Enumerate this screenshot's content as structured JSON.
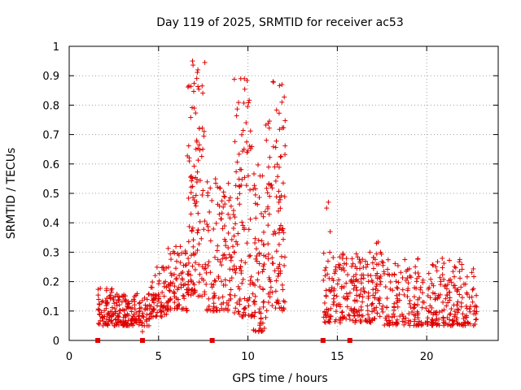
{
  "chart_data": {
    "type": "scatter",
    "title": "Day 119 of 2025, SRMTID for receiver ac53",
    "xlabel": "GPS time / hours",
    "ylabel": "SRMTID / TECUs",
    "xlim": [
      0,
      24
    ],
    "ylim": [
      0,
      1
    ],
    "xticks": [
      0,
      5,
      10,
      15,
      20
    ],
    "xtick_labels": [
      "0",
      "5",
      "10",
      "15",
      "20"
    ],
    "yticks": [
      0,
      0.1,
      0.2,
      0.3,
      0.4,
      0.5,
      0.6,
      0.7,
      0.8,
      0.9,
      1
    ],
    "ytick_labels": [
      "0",
      "0.1",
      "0.2",
      "0.3",
      "0.4",
      "0.5",
      "0.6",
      "0.7",
      "0.8",
      "0.9",
      "1"
    ],
    "grid": true,
    "series_color": "#e00000",
    "marker": "plus",
    "segments": [
      {
        "x0": 1.6,
        "x1": 2.5,
        "low": 0.05,
        "high": 0.18,
        "n": 70
      },
      {
        "x0": 2.5,
        "x1": 4.5,
        "low": 0.05,
        "high": 0.16,
        "n": 150
      },
      {
        "x0": 4.5,
        "x1": 5.5,
        "low": 0.08,
        "high": 0.25,
        "n": 70
      },
      {
        "x0": 5.5,
        "x1": 6.6,
        "low": 0.1,
        "high": 0.32,
        "n": 80
      },
      {
        "x0": 6.6,
        "x1": 7.6,
        "low": 0.15,
        "high": 0.95,
        "n": 120
      },
      {
        "x0": 7.6,
        "x1": 9.2,
        "low": 0.1,
        "high": 0.55,
        "n": 120
      },
      {
        "x0": 9.2,
        "x1": 10.3,
        "low": 0.08,
        "high": 0.9,
        "n": 110
      },
      {
        "x0": 10.3,
        "x1": 11.0,
        "low": 0.03,
        "high": 0.6,
        "n": 70
      },
      {
        "x0": 11.0,
        "x1": 12.1,
        "low": 0.1,
        "high": 0.88,
        "n": 110
      },
      {
        "x0": 14.2,
        "x1": 17.0,
        "low": 0.06,
        "high": 0.3,
        "n": 200
      },
      {
        "x0": 17.0,
        "x1": 17.5,
        "low": 0.07,
        "high": 0.38,
        "n": 40
      },
      {
        "x0": 17.5,
        "x1": 22.8,
        "low": 0.05,
        "high": 0.28,
        "n": 330
      }
    ],
    "outliers": [
      {
        "x": 6.9,
        "y": 0.95
      },
      {
        "x": 7.2,
        "y": 0.92
      },
      {
        "x": 9.8,
        "y": 0.89
      },
      {
        "x": 11.4,
        "y": 0.88
      },
      {
        "x": 11.9,
        "y": 0.87
      },
      {
        "x": 11.9,
        "y": 0.81
      },
      {
        "x": 14.5,
        "y": 0.47
      },
      {
        "x": 14.4,
        "y": 0.45
      },
      {
        "x": 14.6,
        "y": 0.37
      },
      {
        "x": 10.6,
        "y": 0.03
      },
      {
        "x": 4.1,
        "y": 0.03
      }
    ],
    "zero_markers": [
      1.6,
      4.1,
      8.0,
      14.2,
      15.7
    ]
  }
}
